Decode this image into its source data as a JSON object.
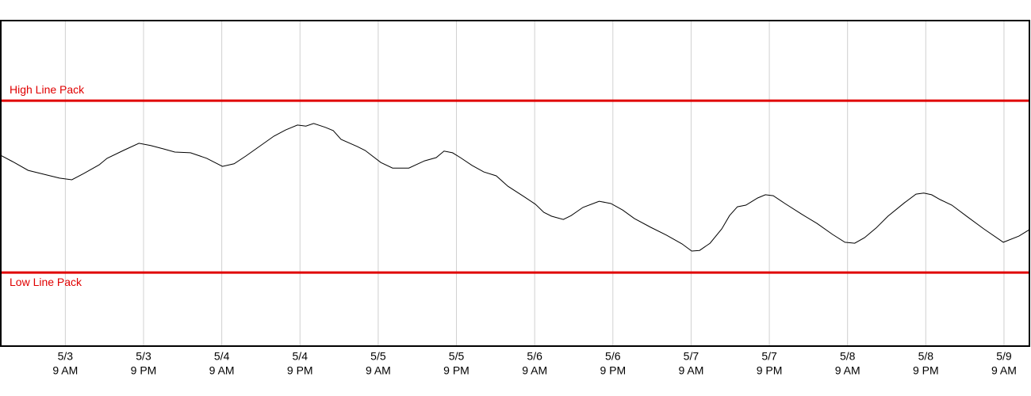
{
  "chart_data": {
    "type": "line",
    "xlim": [
      -9.9,
      147.9
    ],
    "ylim": [
      0,
      100
    ],
    "grid": true,
    "xticks": [
      {
        "value": 0,
        "label": [
          "5/3",
          "9 AM"
        ]
      },
      {
        "value": 12,
        "label": [
          "5/3",
          "9 PM"
        ]
      },
      {
        "value": 24,
        "label": [
          "5/4",
          "9 AM"
        ]
      },
      {
        "value": 36,
        "label": [
          "5/4",
          "9 PM"
        ]
      },
      {
        "value": 48,
        "label": [
          "5/5",
          "9 AM"
        ]
      },
      {
        "value": 60,
        "label": [
          "5/5",
          "9 PM"
        ]
      },
      {
        "value": 72,
        "label": [
          "5/6",
          "9 AM"
        ]
      },
      {
        "value": 84,
        "label": [
          "5/6",
          "9 PM"
        ]
      },
      {
        "value": 96,
        "label": [
          "5/7",
          "9 AM"
        ]
      },
      {
        "value": 108,
        "label": [
          "5/7",
          "9 PM"
        ]
      },
      {
        "value": 120,
        "label": [
          "5/8",
          "9 AM"
        ]
      },
      {
        "value": 132,
        "label": [
          "5/8",
          "9 PM"
        ]
      },
      {
        "value": 144,
        "label": [
          "5/9",
          "9 AM"
        ]
      }
    ],
    "reference_lines": [
      {
        "name": "High Line Pack",
        "value": 75.4,
        "color": "#e00000"
      },
      {
        "name": "Low Line Pack",
        "value": 22.6,
        "color": "#e00000"
      }
    ],
    "series": [
      {
        "color": "#000000",
        "x": [
          -9.9,
          -8.1,
          -5.7,
          -3.3,
          -0.9,
          1.0,
          2.8,
          5.2,
          6.4,
          8.9,
          11.3,
          13.1,
          15.0,
          16.8,
          19.2,
          21.7,
          24.1,
          25.9,
          27.7,
          29.6,
          32.0,
          33.8,
          35.6,
          36.9,
          38.1,
          39.9,
          41.1,
          42.3,
          44.8,
          46.0,
          48.4,
          50.2,
          52.7,
          55.1,
          56.9,
          58.1,
          59.4,
          60.6,
          62.4,
          64.2,
          66.1,
          67.9,
          70.3,
          72.1,
          73.4,
          74.6,
          76.4,
          77.6,
          79.4,
          81.9,
          83.7,
          85.5,
          87.3,
          89.8,
          92.2,
          94.6,
          96.1,
          97.3,
          98.9,
          100.7,
          101.9,
          103.1,
          104.4,
          106.2,
          107.4,
          108.6,
          110.4,
          112.9,
          115.3,
          117.7,
          119.6,
          121.1,
          122.6,
          124.4,
          126.2,
          128.7,
          130.5,
          131.7,
          132.9,
          134.2,
          136.0,
          138.4,
          140.9,
          143.9,
          146.3,
          147.9
        ],
        "values": [
          58.6,
          56.7,
          54.0,
          52.8,
          51.6,
          51.1,
          53.0,
          55.7,
          57.7,
          60.1,
          62.3,
          61.6,
          60.6,
          59.6,
          59.4,
          57.7,
          55.2,
          56.0,
          58.4,
          61.1,
          64.5,
          66.4,
          67.9,
          67.6,
          68.4,
          67.2,
          66.2,
          63.5,
          61.3,
          60.1,
          56.4,
          54.7,
          54.7,
          56.9,
          57.9,
          59.9,
          59.4,
          57.9,
          55.5,
          53.5,
          52.3,
          49.1,
          46.0,
          43.6,
          41.1,
          39.9,
          38.9,
          40.1,
          42.6,
          44.5,
          43.8,
          41.8,
          39.2,
          36.5,
          34.1,
          31.4,
          29.2,
          29.4,
          31.6,
          36.0,
          40.1,
          42.8,
          43.3,
          45.5,
          46.5,
          46.2,
          43.8,
          40.6,
          37.7,
          34.3,
          31.9,
          31.6,
          33.3,
          36.3,
          39.9,
          44.0,
          46.7,
          47.0,
          46.5,
          45.0,
          43.3,
          39.7,
          36.0,
          31.9,
          33.8,
          35.8
        ]
      }
    ]
  }
}
